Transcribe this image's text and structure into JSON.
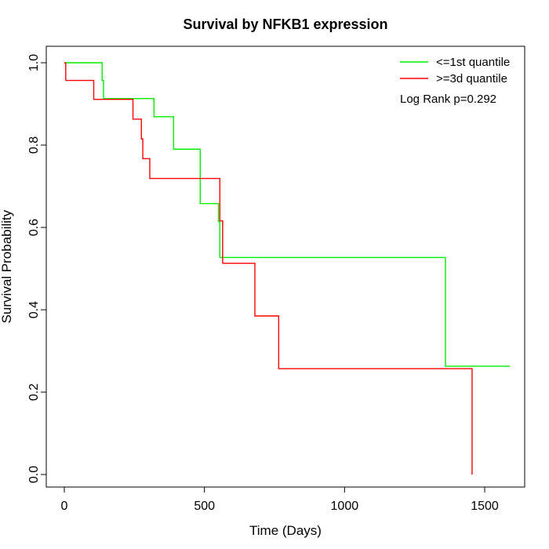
{
  "chart_data": {
    "type": "line",
    "title": "Survival by NFKB1 expression",
    "xlabel": "Time (Days)",
    "ylabel": "Survival Probability",
    "xlim": [
      0,
      1600
    ],
    "ylim": [
      0,
      1.0
    ],
    "x_ticks": [
      0,
      500,
      1000,
      1500
    ],
    "y_ticks": [
      0.0,
      0.2,
      0.4,
      0.6,
      0.8,
      1.0
    ],
    "x_tick_labels": [
      "0",
      "500",
      "1000",
      "1500"
    ],
    "y_tick_labels": [
      "0.0",
      "0.2",
      "0.4",
      "0.6",
      "0.8",
      "1.0"
    ],
    "annotation": "Log Rank p=0.292",
    "legend_position": "top-right",
    "grid": false,
    "series": [
      {
        "name": "<=1st quantile",
        "color": "#00ee00",
        "step_x": [
          0,
          135,
          140,
          320,
          390,
          485,
          550,
          555,
          1360,
          1590
        ],
        "step_y": [
          1.0,
          0.957,
          0.913,
          0.869,
          0.79,
          0.658,
          0.614,
          0.527,
          0.263,
          0.263
        ]
      },
      {
        "name": ">=3d quantile",
        "color": "#ff0000",
        "step_x": [
          5,
          105,
          245,
          275,
          280,
          285,
          305,
          555,
          565,
          680,
          765,
          1455,
          1455
        ],
        "step_y": [
          0.957,
          0.911,
          0.863,
          0.815,
          0.767,
          0.767,
          0.719,
          0.616,
          0.513,
          0.385,
          0.257,
          0.257,
          0.0
        ]
      }
    ]
  }
}
